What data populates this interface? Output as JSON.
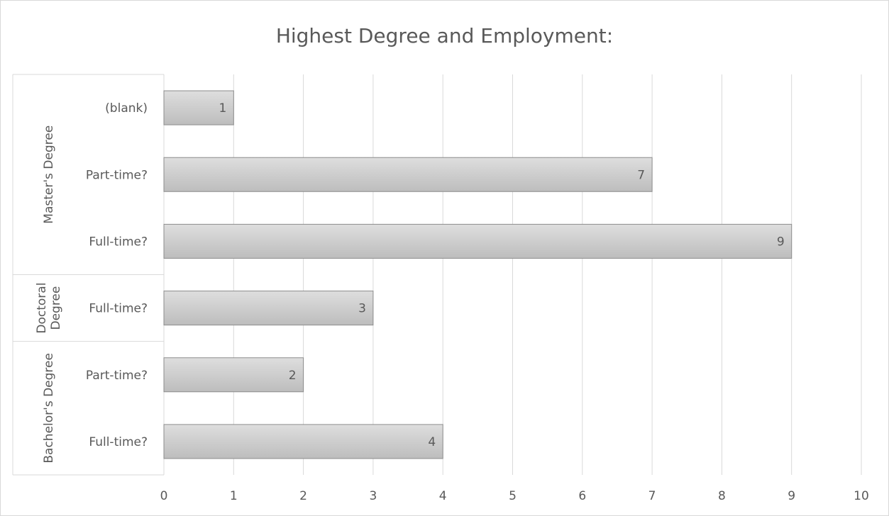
{
  "chart_data": {
    "type": "bar",
    "orientation": "horizontal",
    "title": "Highest Degree and Employment:",
    "xlabel": "",
    "ylabel": "",
    "xlim": [
      0,
      10
    ],
    "x_ticks": [
      "0",
      "1",
      "2",
      "3",
      "4",
      "5",
      "6",
      "7",
      "8",
      "9",
      "10"
    ],
    "grid": true,
    "legend": "none",
    "groups": [
      {
        "label": "Master's Degree",
        "categories": [
          "(blank)",
          "Part-time?",
          "Full-time?"
        ],
        "values": [
          1,
          7,
          9
        ]
      },
      {
        "label": "Doctoral Degree",
        "label_lines": [
          "Doctoral",
          "Degree"
        ],
        "categories": [
          "Full-time?"
        ],
        "values": [
          3
        ]
      },
      {
        "label": "Bachelor's Degree",
        "categories": [
          "Part-time?",
          "Full-time?"
        ],
        "values": [
          2,
          4
        ]
      }
    ],
    "data_labels": true,
    "colors": {
      "bar_fill_light": "#dedede",
      "bar_fill_dark": "#bdbdbd",
      "bar_stroke": "#8c8c8c",
      "grid": "#d9d9d9",
      "text": "#595959"
    }
  }
}
